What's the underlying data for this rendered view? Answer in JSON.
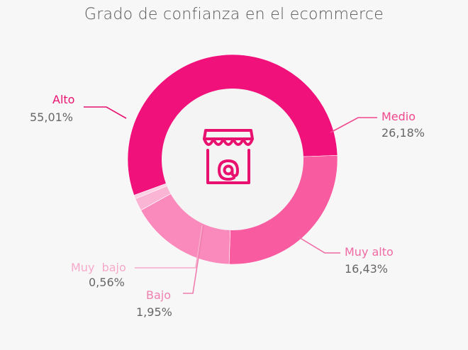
{
  "chart_data": {
    "type": "pie",
    "title": "Grado de confianza en el ecommerce",
    "categories": [
      "Alto",
      "Medio",
      "Muy alto",
      "Bajo",
      "Muy  bajo"
    ],
    "series": [
      {
        "values": [
          55.01,
          26.18,
          16.43,
          1.95,
          0.56
        ]
      }
    ],
    "labels": [
      "55,01%",
      "26,18%",
      "16,43%",
      "1,95%",
      "0,56%"
    ],
    "colors": [
      "#f0117a",
      "#f85ba0",
      "#f98abb",
      "#fab5d4",
      "#fcd0e4"
    ],
    "label_colors": [
      "#e8116f",
      "#f0478e",
      "#f06aa3",
      "#f07fb0",
      "#f6a9c9"
    ],
    "center_icon": "shop-at-icon",
    "grid": false,
    "legend": "none"
  }
}
